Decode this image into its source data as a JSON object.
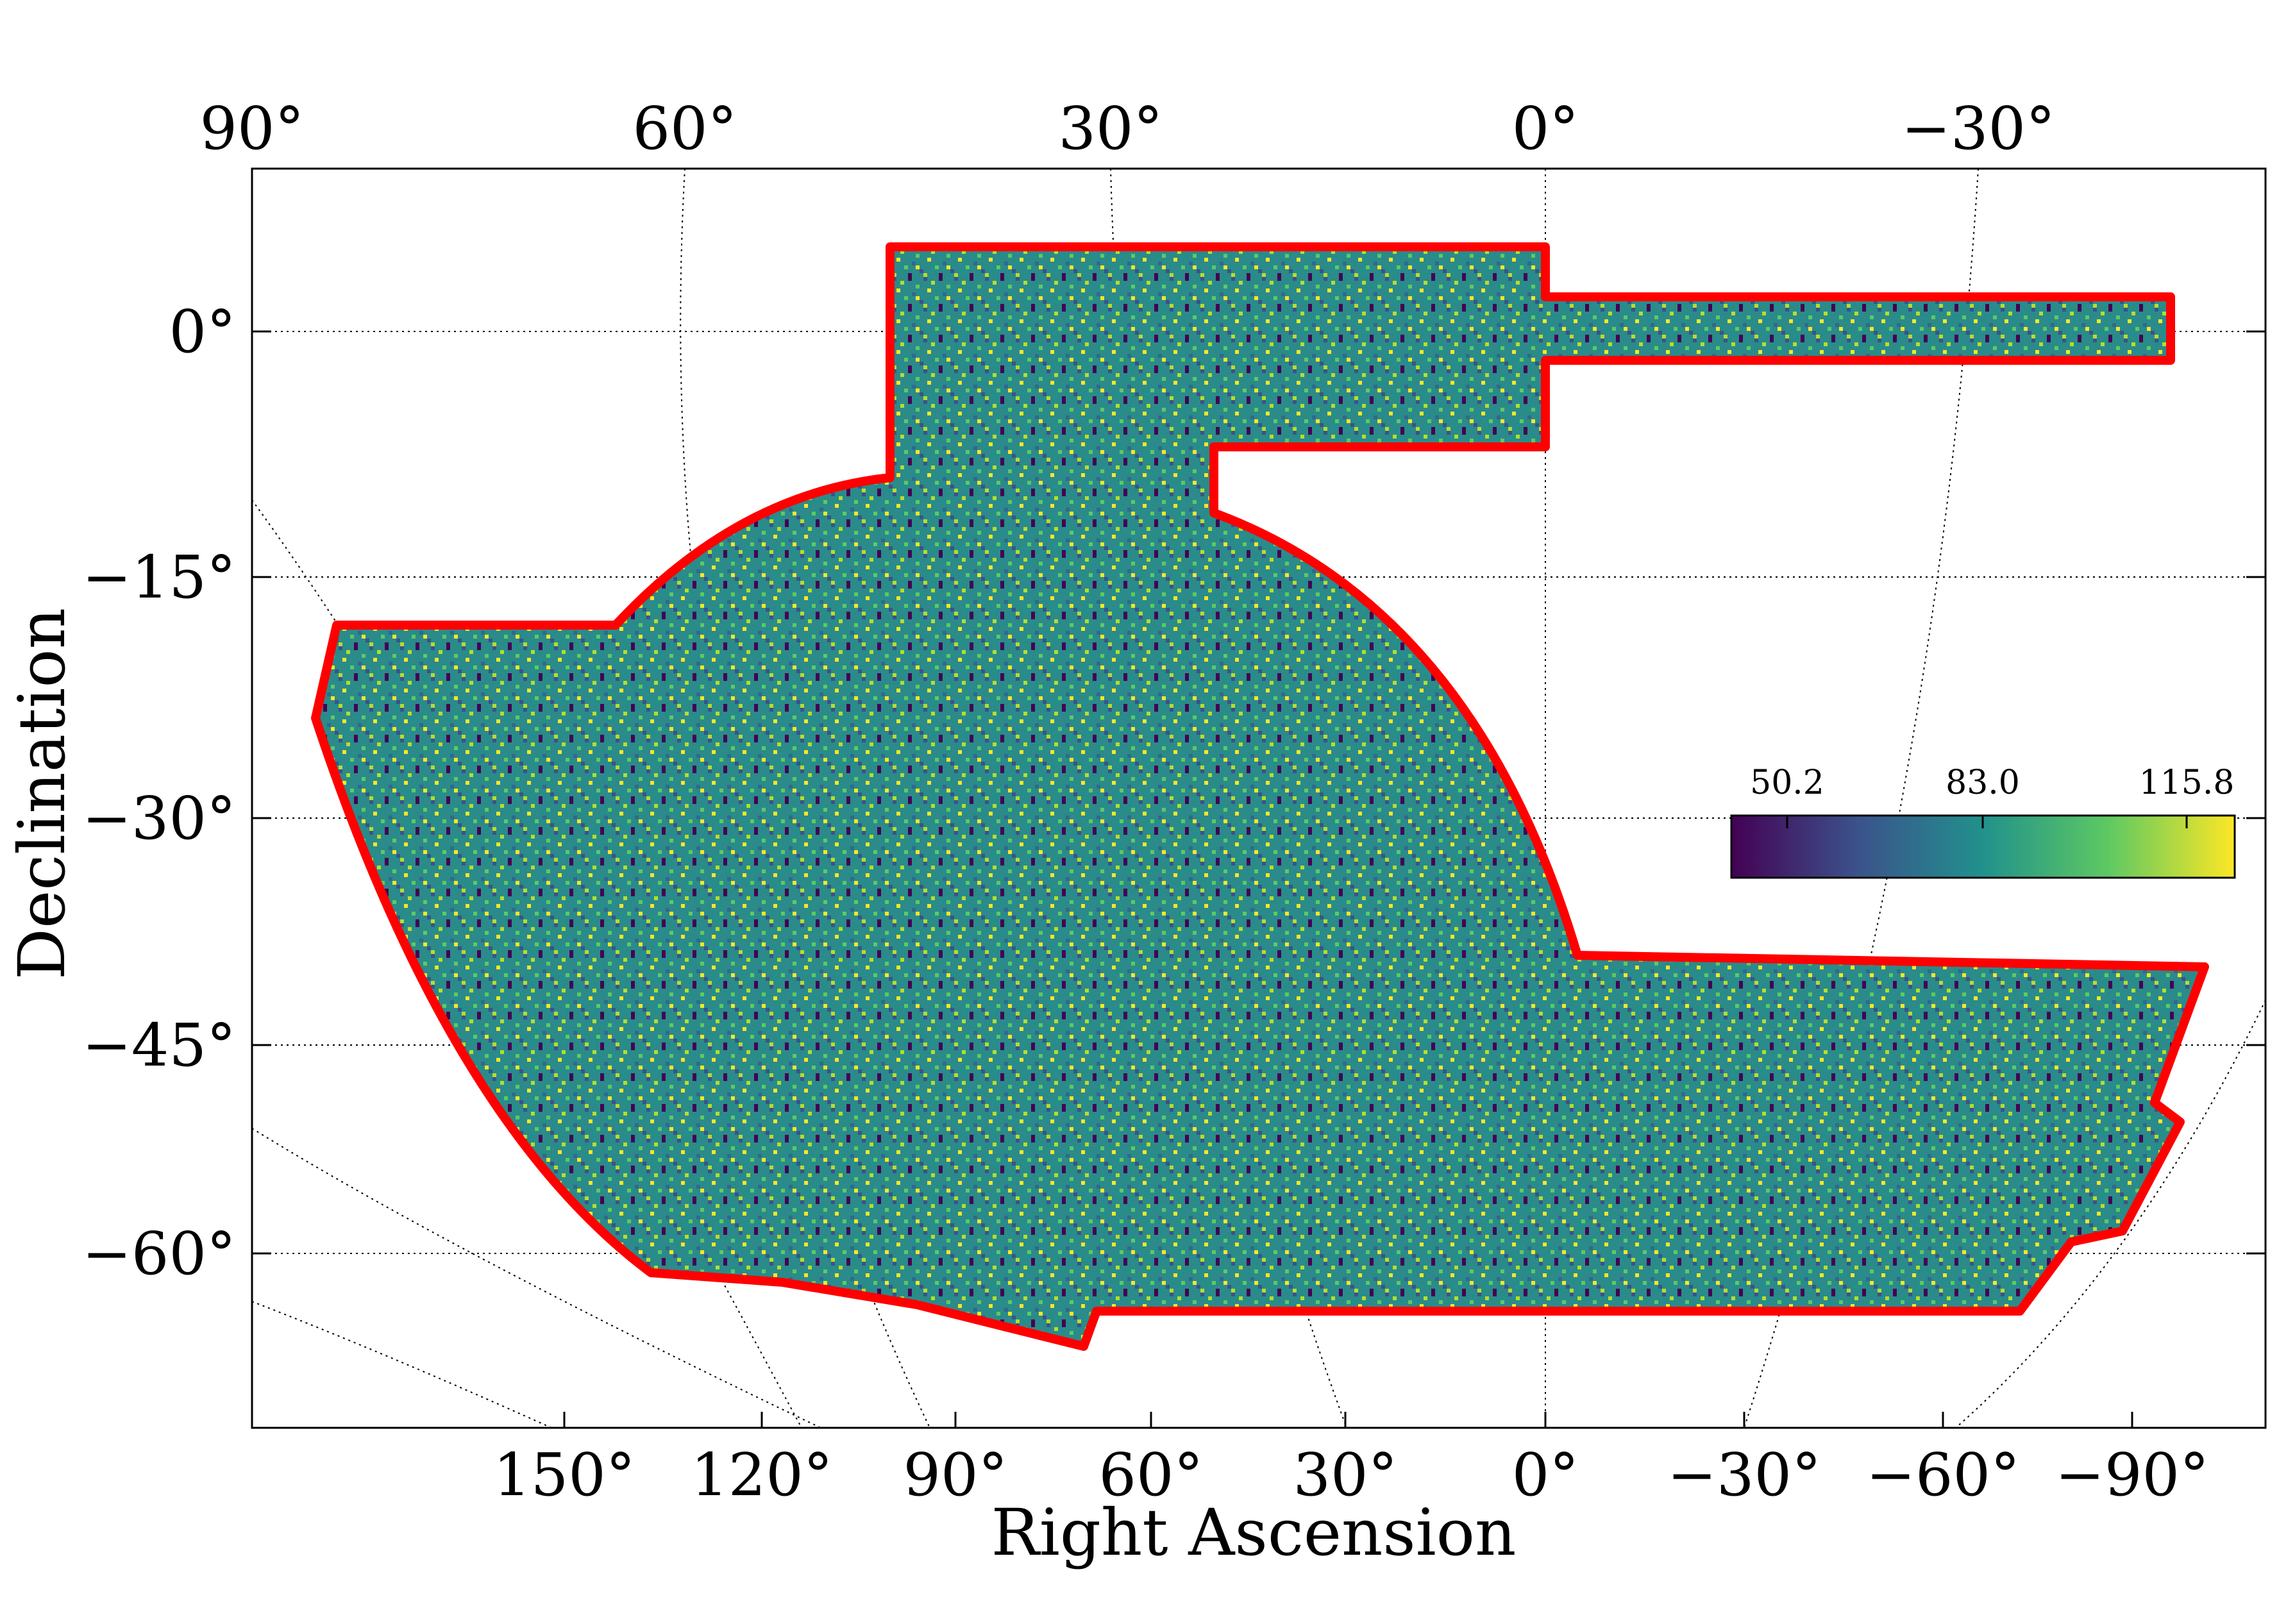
{
  "chart_data": {
    "type": "heatmap",
    "title": "",
    "xlabel": "Right Ascension",
    "ylabel": "Declination",
    "top_tick_labels": [
      "90°",
      "60°",
      "30°",
      "0°",
      "−30°"
    ],
    "bottom_tick_labels": [
      "150°",
      "120°",
      "90°",
      "60°",
      "30°",
      "0°",
      "−30°",
      "−60°",
      "−90°"
    ],
    "left_tick_labels": [
      "0°",
      "−15°",
      "−30°",
      "−45°",
      "−60°"
    ],
    "dec_values": [
      0,
      -15,
      -30,
      -45,
      -60
    ],
    "colorbar": {
      "colormap": "viridis",
      "min": 50.2,
      "mid": 83.0,
      "max": 115.8,
      "tick_labels": [
        "50.2",
        "83.0",
        "115.8"
      ],
      "placement": "right-middle, inside axes"
    },
    "footprint_outline_color": "#ff0000",
    "grid": true,
    "colors": [
      "#440154",
      "#3b528b",
      "#21918c",
      "#5ec962",
      "#fde725"
    ]
  }
}
